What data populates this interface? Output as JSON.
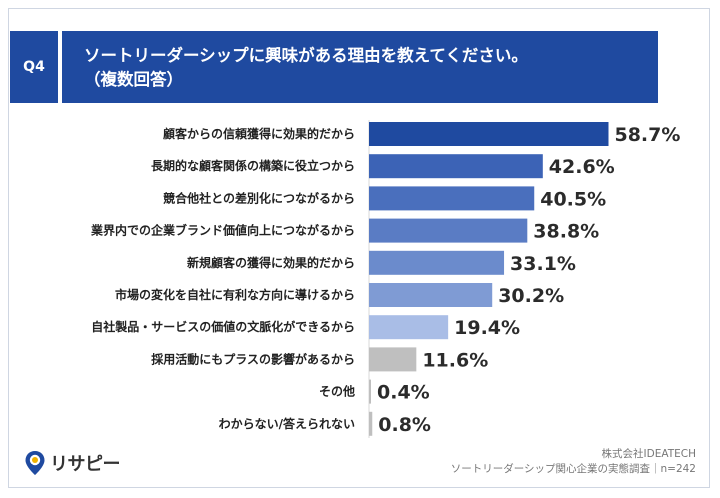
{
  "header": {
    "badge": "Q4",
    "title_line1": "ソートリーダーシップに興味がある理由を教えてください。",
    "title_line2": "（複数回答）"
  },
  "footer": {
    "brand": "リサピー",
    "company": "株式会社IDEATECH",
    "survey": "ソートリーダーシップ関心企業の実態調査｜n=242"
  },
  "colors": {
    "header_bg": "#1f4aa0",
    "bar_shades": [
      "#1f4aa0",
      "#3c63b6",
      "#4a6fbd",
      "#5a7cc4",
      "#6b8bcc",
      "#7f9bd4",
      "#a9bde6",
      "#bfbfbf",
      "#bfbfbf",
      "#bfbfbf"
    ]
  },
  "chart_data": {
    "type": "bar",
    "orientation": "horizontal",
    "title": "ソートリーダーシップに興味がある理由を教えてください。（複数回答）",
    "categories": [
      "顧客からの信頼獲得に効果的だから",
      "長期的な顧客関係の構築に役立つから",
      "競合他社との差別化につながるから",
      "業界内での企業ブランド価値向上につながるから",
      "新規顧客の獲得に効果的だから",
      "市場の変化を自社に有利な方向に導けるから",
      "自社製品・サービスの価値の文脈化ができるから",
      "採用活動にもプラスの影響があるから",
      "その他",
      "わからない/答えられない"
    ],
    "values": [
      58.7,
      42.6,
      40.5,
      38.8,
      33.1,
      30.2,
      19.4,
      11.6,
      0.4,
      0.8
    ],
    "value_labels": [
      "58.7%",
      "42.6%",
      "40.5%",
      "38.8%",
      "33.1%",
      "30.2%",
      "19.4%",
      "11.6%",
      "0.4%",
      "0.8%"
    ],
    "xlim": [
      0,
      100
    ],
    "grid": false,
    "legend": "none"
  }
}
